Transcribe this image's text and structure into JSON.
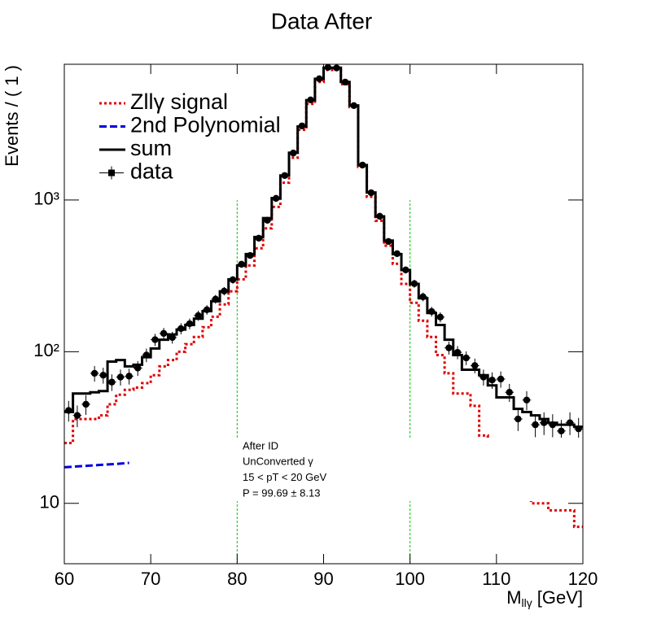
{
  "chart_data": {
    "type": "histogram",
    "title": "Data After",
    "y_label": "Events / ( 1 )",
    "x_label": {
      "main": "M",
      "sub": "llγ",
      "unit": "[GeV]"
    },
    "xlim": [
      60,
      120
    ],
    "xticks": [
      60,
      70,
      80,
      90,
      100,
      110,
      120
    ],
    "ylim": [
      4,
      7850
    ],
    "log_y": true,
    "yticks": [
      10,
      {
        "value": 100,
        "label": "10²"
      },
      {
        "value": 1000,
        "label": "10³"
      }
    ],
    "bins": [
      60,
      61,
      62,
      63,
      64,
      65,
      66,
      67,
      68,
      69,
      70,
      71,
      72,
      73,
      74,
      75,
      76,
      77,
      78,
      79,
      80,
      81,
      82,
      83,
      84,
      85,
      86,
      87,
      88,
      89,
      90,
      91,
      92,
      93,
      94,
      95,
      96,
      97,
      98,
      99,
      100,
      101,
      102,
      103,
      104,
      105,
      106,
      107,
      108,
      109,
      110,
      111,
      112,
      113,
      114,
      115,
      116,
      117,
      118,
      119,
      120
    ],
    "series": [
      {
        "name": "Zllγ signal",
        "color": "#e00000",
        "style": "dotted",
        "values": [
          25,
          36,
          36,
          36,
          38,
          45,
          52,
          56,
          58,
          62,
          70,
          80,
          88,
          100,
          112,
          125,
          145,
          170,
          205,
          250,
          300,
          370,
          480,
          650,
          900,
          1300,
          1900,
          2900,
          4300,
          6000,
          7200,
          7200,
          5800,
          4100,
          1650,
          1050,
          730,
          500,
          380,
          280,
          210,
          160,
          125,
          95,
          72,
          53,
          53,
          44,
          28,
          26,
          23,
          19,
          16,
          13,
          10,
          10,
          9,
          9,
          9,
          7
        ]
      },
      {
        "name": "2nd Polynomial",
        "color": "#0000e0",
        "style": "dashed",
        "x": [
          60,
          62,
          64,
          66,
          67.5
        ],
        "values": [
          17.3,
          17.6,
          17.9,
          18.2,
          18.5
        ]
      },
      {
        "name": "sum",
        "color": "#000000",
        "style": "solid",
        "values": [
          40,
          53,
          53,
          54,
          55,
          86,
          88,
          80,
          82,
          92,
          105,
          120,
          130,
          140,
          150,
          165,
          185,
          215,
          250,
          300,
          370,
          440,
          570,
          760,
          1030,
          1450,
          2050,
          3050,
          4550,
          6300,
          7450,
          7450,
          6000,
          4200,
          1700,
          1120,
          780,
          540,
          440,
          345,
          280,
          225,
          180,
          150,
          120,
          95,
          76,
          76,
          70,
          60,
          50,
          50,
          42,
          40,
          38,
          36,
          34,
          33,
          33,
          32
        ]
      },
      {
        "name": "data",
        "color": "#000000",
        "style": "points",
        "values": [
          41,
          38,
          45,
          72,
          70,
          63,
          68,
          69,
          78,
          95,
          120,
          132,
          124,
          142,
          153,
          173,
          189,
          222,
          251,
          298,
          377,
          431,
          560,
          735,
          1025,
          1450,
          2040,
          3080,
          4570,
          6300,
          7490,
          7420,
          5990,
          4190,
          1700,
          1117,
          781,
          533,
          443,
          346,
          281,
          230,
          184,
          169,
          106,
          99,
          91,
          81,
          68,
          65,
          66,
          54,
          36,
          48,
          33,
          34,
          33,
          30,
          34,
          31
        ],
        "errors": [
          6.4,
          6.2,
          6.7,
          8.5,
          8.4,
          7.9,
          8.2,
          8.3,
          8.8,
          9.7,
          11,
          11.5,
          11.1,
          11.9,
          12.4,
          13.2,
          13.7,
          14.9,
          15.8,
          17.3,
          19.4,
          20.8,
          23.7,
          27.1,
          32,
          38.1,
          45.2,
          55.5,
          67.6,
          79.4,
          86.5,
          86.1,
          77.4,
          64.7,
          41.2,
          33.4,
          27.9,
          23.1,
          21,
          18.6,
          16.8,
          15.2,
          13.6,
          13,
          10.3,
          9.9,
          9.5,
          9,
          8.2,
          8.1,
          8.1,
          7.3,
          6,
          6.9,
          5.7,
          5.8,
          5.7,
          5.5,
          5.8,
          5.6
        ]
      }
    ],
    "vlines": [
      {
        "x": 80,
        "ymax": 1000,
        "color": "#00cc00"
      },
      {
        "x": 100,
        "ymax": 1000,
        "color": "#00cc00"
      }
    ],
    "annotations": [
      "After ID",
      "UnConverted γ",
      "15 < pT < 20 GeV",
      "P = 99.69 ± 8.13"
    ]
  }
}
